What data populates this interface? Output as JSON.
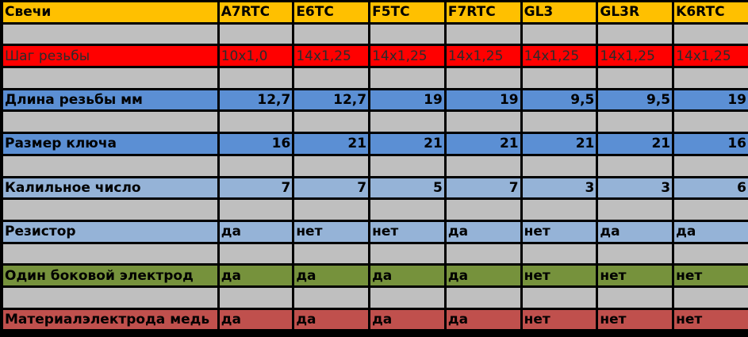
{
  "header": {
    "label": "Свечи",
    "columns": [
      "A7RTC",
      "E6TC",
      "F5TC",
      "F7RTC",
      "GL3",
      "GL3R",
      "K6RTC"
    ]
  },
  "rows": {
    "thread_pitch": {
      "label": "Шаг резьбы",
      "values": [
        "10x1,0",
        "14x1,25",
        "14x1,25",
        "14x1,25",
        "14x1,25",
        "14x1,25",
        "14x1,25"
      ]
    },
    "thread_length": {
      "label": "Длина резьбы мм",
      "values": [
        "12,7",
        "12,7",
        "19",
        "19",
        "9,5",
        "9,5",
        "19"
      ]
    },
    "wrench_size": {
      "label": "Размер ключа",
      "values": [
        "16",
        "21",
        "21",
        "21",
        "21",
        "21",
        "16"
      ]
    },
    "heat_range": {
      "label": "Калильное число",
      "values": [
        "7",
        "7",
        "5",
        "7",
        "3",
        "3",
        "6"
      ]
    },
    "resistor": {
      "label": "Резистор",
      "values": [
        "да",
        "нет",
        "нет",
        "да",
        "нет",
        "да",
        "да"
      ]
    },
    "single_side_electrode": {
      "label": "Один боковой электрод",
      "values": [
        "да",
        "да",
        "да",
        "да",
        "нет",
        "нет",
        "нет"
      ]
    },
    "copper_electrode": {
      "label": "Материалэлектрода медь",
      "values": [
        "да",
        "да",
        "да",
        "да",
        "нет",
        "нет",
        "нет"
      ]
    }
  },
  "colors": {
    "header": "#ffc000",
    "spacer": "#bfbfbf",
    "thread_pitch": "#ff0000",
    "thread_length": "#5b8fd4",
    "wrench_size": "#5b8fd4",
    "heat_range": "#95b3d7",
    "resistor": "#95b3d7",
    "single_side_electrode": "#76923c",
    "copper_electrode": "#c0504d",
    "grid": "#000000"
  }
}
